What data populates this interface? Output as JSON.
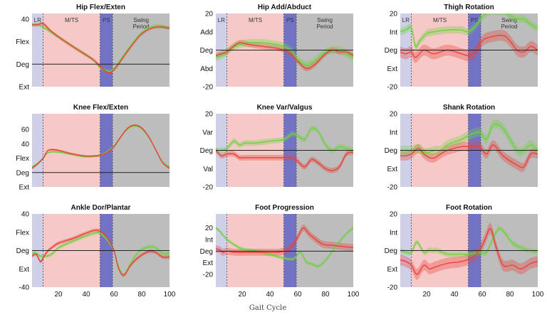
{
  "figure": {
    "xlabel": "Gait Cycle",
    "colors": {
      "lr_phase": "#cfcfe8",
      "mts_phase": "#f6c9c9",
      "ps_phase": "#7373c6",
      "swing_phase": "#bdbdbd",
      "series_red": "#e8423a",
      "series_green": "#6fd13f",
      "zero_line": "#222222"
    },
    "phases": [
      {
        "name": "LR",
        "label": "LR",
        "start": 1,
        "end": 9
      },
      {
        "name": "M/TS",
        "label": "M/TS",
        "start": 9,
        "end": 50
      },
      {
        "name": "PS",
        "label": "PS",
        "start": 50,
        "end": 59
      },
      {
        "name": "Swing Period",
        "label": "Swing\nPeriod",
        "start": 59,
        "end": 100
      }
    ],
    "x_ticks": [
      20,
      40,
      60,
      80,
      100
    ]
  },
  "chart_data": [
    {
      "type": "line",
      "title": "Hip Flex/Exten",
      "ylim": [
        -20,
        45
      ],
      "xlim": [
        1,
        100
      ],
      "y_ticks": [
        {
          "v": 40,
          "label": "40"
        },
        {
          "v": 20,
          "label": "Flex"
        },
        {
          "v": 0,
          "label": "Deg"
        },
        {
          "v": -20,
          "label": "Ext"
        }
      ],
      "show_phase_labels": true,
      "show_x_ticks": false,
      "series": [
        {
          "name": "red",
          "band": 1.5,
          "x": [
            1,
            5,
            9,
            15,
            25,
            35,
            45,
            50,
            55,
            58,
            62,
            70,
            80,
            90,
            100
          ],
          "y": [
            35,
            35,
            36,
            29,
            20,
            12,
            4,
            -2,
            -7,
            -7,
            -2,
            12,
            27,
            33,
            32
          ]
        },
        {
          "name": "green",
          "band": 1.5,
          "x": [
            1,
            5,
            9,
            15,
            25,
            35,
            45,
            50,
            55,
            58,
            62,
            70,
            80,
            90,
            100
          ],
          "y": [
            35,
            35,
            33,
            28,
            20,
            12,
            4,
            -3,
            -6,
            -6,
            -1,
            13,
            28,
            34,
            32
          ]
        }
      ]
    },
    {
      "type": "line",
      "title": "Hip Add/Abduct",
      "ylim": [
        -20,
        20
      ],
      "xlim": [
        1,
        100
      ],
      "y_ticks": [
        {
          "v": 20,
          "label": "20"
        },
        {
          "v": 10,
          "label": "Add"
        },
        {
          "v": 0,
          "label": "Deg"
        },
        {
          "v": -10,
          "label": "Abd"
        },
        {
          "v": -20,
          "label": "-20"
        }
      ],
      "show_phase_labels": true,
      "show_x_ticks": false,
      "series": [
        {
          "name": "red",
          "band": 1.5,
          "x": [
            1,
            5,
            9,
            12,
            18,
            25,
            35,
            45,
            50,
            55,
            60,
            66,
            72,
            80,
            85,
            90,
            95,
            100
          ],
          "y": [
            -3,
            -2,
            -1,
            1,
            4,
            3,
            2,
            1,
            0,
            -2,
            -6,
            -10,
            -8,
            -2,
            0,
            -1,
            -1,
            -3
          ]
        },
        {
          "name": "green",
          "band": 2,
          "x": [
            1,
            5,
            9,
            12,
            18,
            25,
            35,
            45,
            50,
            55,
            60,
            66,
            72,
            80,
            85,
            90,
            95,
            100
          ],
          "y": [
            -4,
            -3,
            -1,
            1,
            3,
            4,
            4,
            3,
            2,
            0,
            -5,
            -8,
            -6,
            -1,
            0,
            0,
            -2,
            -4
          ]
        }
      ]
    },
    {
      "type": "line",
      "title": "Thigh Rotation",
      "ylim": [
        -20,
        20
      ],
      "xlim": [
        1,
        100
      ],
      "y_ticks": [
        {
          "v": 20,
          "label": "20"
        },
        {
          "v": 10,
          "label": "Int"
        },
        {
          "v": 0,
          "label": "Deg"
        },
        {
          "v": -10,
          "label": "Ext"
        },
        {
          "v": -20,
          "label": "-20"
        }
      ],
      "show_phase_labels": true,
      "show_x_ticks": false,
      "series": [
        {
          "name": "red",
          "band": 3,
          "x": [
            1,
            5,
            9,
            12,
            18,
            25,
            35,
            45,
            50,
            55,
            60,
            65,
            75,
            80,
            85,
            90,
            95,
            100
          ],
          "y": [
            -1,
            -2,
            -1,
            -4,
            0,
            -2,
            0,
            -2,
            -3,
            -1,
            5,
            7,
            8,
            5,
            0,
            -1,
            2,
            0
          ]
        },
        {
          "name": "green",
          "band": 2,
          "x": [
            1,
            5,
            9,
            12,
            15,
            20,
            25,
            35,
            45,
            50,
            55,
            60,
            65,
            75,
            80,
            85,
            90,
            95,
            100
          ],
          "y": [
            10,
            11,
            12,
            2,
            5,
            9,
            10,
            11,
            11,
            10,
            13,
            18,
            21,
            21,
            19,
            17,
            17,
            14,
            12
          ]
        }
      ]
    },
    {
      "type": "line",
      "title": "Knee Flex/Exten",
      "ylim": [
        -20,
        82
      ],
      "xlim": [
        1,
        100
      ],
      "y_ticks": [
        {
          "v": 60,
          "label": "60"
        },
        {
          "v": 40,
          "label": "40"
        },
        {
          "v": 20,
          "label": "Flex"
        },
        {
          "v": 0,
          "label": "Deg"
        },
        {
          "v": -20,
          "label": "Ext"
        }
      ],
      "show_phase_labels": false,
      "show_x_ticks": false,
      "series": [
        {
          "name": "red",
          "band": 1.5,
          "x": [
            1,
            5,
            9,
            12,
            16,
            22,
            30,
            40,
            50,
            55,
            60,
            65,
            70,
            75,
            80,
            85,
            90,
            95,
            100
          ],
          "y": [
            6,
            12,
            20,
            30,
            32,
            30,
            26,
            23,
            24,
            28,
            36,
            50,
            62,
            66,
            62,
            50,
            32,
            14,
            6
          ]
        },
        {
          "name": "green",
          "band": 1.5,
          "x": [
            1,
            5,
            9,
            12,
            16,
            22,
            30,
            40,
            50,
            55,
            60,
            65,
            70,
            75,
            80,
            85,
            90,
            95,
            100
          ],
          "y": [
            8,
            13,
            20,
            27,
            29,
            28,
            25,
            22,
            24,
            29,
            37,
            50,
            61,
            65,
            61,
            49,
            32,
            15,
            8
          ]
        }
      ]
    },
    {
      "type": "line",
      "title": "Knee Var/Valgus",
      "ylim": [
        -20,
        20
      ],
      "xlim": [
        1,
        100
      ],
      "y_ticks": [
        {
          "v": 20,
          "label": "20"
        },
        {
          "v": 10,
          "label": "Var"
        },
        {
          "v": 0,
          "label": "Deg"
        },
        {
          "v": -10,
          "label": "Val"
        },
        {
          "v": -20,
          "label": "-20"
        }
      ],
      "show_phase_labels": false,
      "show_x_ticks": false,
      "series": [
        {
          "name": "red",
          "band": 1.5,
          "x": [
            1,
            5,
            9,
            14,
            18,
            22,
            26,
            30,
            40,
            50,
            56,
            60,
            65,
            70,
            75,
            80,
            85,
            90,
            95,
            100
          ],
          "y": [
            0,
            -3,
            -2,
            -2,
            -4,
            -4,
            -4,
            -4,
            -4,
            -4,
            -4,
            -6,
            -9,
            -5,
            -7,
            -10,
            -11,
            -9,
            -2,
            -1
          ]
        },
        {
          "name": "green",
          "band": 1.5,
          "x": [
            1,
            5,
            9,
            14,
            18,
            22,
            26,
            30,
            40,
            50,
            56,
            60,
            65,
            70,
            75,
            80,
            85,
            90,
            95,
            100
          ],
          "y": [
            0,
            0,
            1,
            5,
            3,
            4,
            4,
            4,
            5,
            6,
            9,
            8,
            6,
            12,
            10,
            3,
            0,
            2,
            1,
            0
          ]
        }
      ]
    },
    {
      "type": "line",
      "title": "Shank Rotation",
      "ylim": [
        -20,
        20
      ],
      "xlim": [
        1,
        100
      ],
      "y_ticks": [
        {
          "v": 20,
          "label": "20"
        },
        {
          "v": 10,
          "label": "Int"
        },
        {
          "v": 0,
          "label": "Deg"
        },
        {
          "v": -10,
          "label": "Ext"
        },
        {
          "v": -20,
          "label": "-20"
        }
      ],
      "show_phase_labels": false,
      "show_x_ticks": false,
      "series": [
        {
          "name": "red",
          "band": 2.5,
          "x": [
            1,
            5,
            9,
            14,
            18,
            22,
            26,
            30,
            35,
            45,
            50,
            58,
            63,
            68,
            75,
            85,
            90,
            95,
            100
          ],
          "y": [
            -3,
            -3,
            -2,
            1,
            -2,
            -4,
            -4,
            -2,
            0,
            2,
            2,
            2,
            -2,
            3,
            -3,
            -8,
            -9,
            -2,
            -2
          ]
        },
        {
          "name": "green",
          "band": 2.5,
          "x": [
            1,
            5,
            9,
            14,
            18,
            22,
            26,
            30,
            35,
            45,
            50,
            58,
            63,
            68,
            75,
            85,
            90,
            95,
            100
          ],
          "y": [
            0,
            0,
            0,
            1,
            -1,
            -1,
            0,
            0,
            3,
            6,
            8,
            10,
            6,
            14,
            12,
            0,
            0,
            3,
            0
          ]
        }
      ]
    },
    {
      "type": "line",
      "title": "Ankle Dor/Plantar",
      "ylim": [
        -40,
        40
      ],
      "xlim": [
        1,
        100
      ],
      "y_ticks": [
        {
          "v": 40,
          "label": "40"
        },
        {
          "v": 20,
          "label": "Flex"
        },
        {
          "v": 0,
          "label": "Deg"
        },
        {
          "v": -20,
          "label": "Ext"
        },
        {
          "v": -40,
          "label": "-40"
        }
      ],
      "show_phase_labels": false,
      "show_x_ticks": true,
      "series": [
        {
          "name": "red",
          "band": 2,
          "x": [
            1,
            4,
            7,
            9,
            12,
            16,
            20,
            30,
            40,
            46,
            50,
            55,
            60,
            63,
            67,
            72,
            78,
            85,
            90,
            95,
            100
          ],
          "y": [
            -6,
            -4,
            -12,
            -8,
            -1,
            4,
            8,
            13,
            19,
            22,
            21,
            14,
            0,
            -18,
            -27,
            -16,
            -7,
            -1,
            -2,
            -7,
            -7
          ]
        },
        {
          "name": "green",
          "band": 2,
          "x": [
            1,
            4,
            7,
            9,
            12,
            16,
            20,
            30,
            40,
            46,
            50,
            55,
            60,
            63,
            67,
            72,
            78,
            85,
            90,
            95,
            100
          ],
          "y": [
            -3,
            -3,
            -6,
            -6,
            -6,
            -3,
            3,
            10,
            16,
            19,
            19,
            12,
            0,
            -16,
            -27,
            -14,
            -1,
            4,
            3,
            -3,
            -3
          ]
        }
      ]
    },
    {
      "type": "line",
      "title": "Foot Progression",
      "ylim": [
        -31,
        32
      ],
      "xlim": [
        1,
        100
      ],
      "y_ticks": [
        {
          "v": 20,
          "label": "20"
        },
        {
          "v": 10,
          "label": "Int"
        },
        {
          "v": 0,
          "label": "Deg"
        },
        {
          "v": -10,
          "label": "Ext"
        },
        {
          "v": -20,
          "label": "-20"
        }
      ],
      "show_phase_labels": false,
      "show_x_ticks": true,
      "series": [
        {
          "name": "red",
          "band": 3,
          "x": [
            1,
            4,
            6,
            9,
            15,
            25,
            35,
            45,
            50,
            55,
            60,
            64,
            68,
            72,
            78,
            85,
            92,
            100
          ],
          "y": [
            2,
            1,
            -1,
            0,
            -1,
            -1,
            -1,
            -1,
            0,
            3,
            12,
            20,
            15,
            11,
            6,
            5,
            4,
            3
          ]
        },
        {
          "name": "green",
          "band": 1.5,
          "x": [
            1,
            4,
            9,
            15,
            20,
            30,
            40,
            50,
            55,
            58,
            62,
            66,
            70,
            75,
            80,
            85,
            90,
            95,
            100
          ],
          "y": [
            20,
            17,
            10,
            5,
            2,
            0,
            -3,
            -6,
            -7,
            -6,
            -1,
            -9,
            -11,
            -13,
            -8,
            0,
            8,
            15,
            20
          ]
        }
      ]
    },
    {
      "type": "line",
      "title": "Foot Rotation",
      "ylim": [
        -20,
        20
      ],
      "xlim": [
        1,
        100
      ],
      "y_ticks": [
        {
          "v": 20,
          "label": "20"
        },
        {
          "v": 10,
          "label": "Int"
        },
        {
          "v": 0,
          "label": "Deg"
        },
        {
          "v": -10,
          "label": "Ext"
        },
        {
          "v": -20,
          "label": "-20"
        }
      ],
      "show_phase_labels": false,
      "show_x_ticks": true,
      "series": [
        {
          "name": "red",
          "band": 3,
          "x": [
            1,
            5,
            9,
            13,
            18,
            22,
            26,
            35,
            45,
            52,
            58,
            62,
            66,
            70,
            75,
            82,
            88,
            95,
            100
          ],
          "y": [
            -5,
            -6,
            -8,
            -13,
            -8,
            -10,
            -9,
            -7,
            -6,
            -4,
            0,
            6,
            12,
            2,
            -8,
            -8,
            -10,
            -7,
            -6
          ]
        },
        {
          "name": "green",
          "band": 1.5,
          "x": [
            1,
            5,
            9,
            12,
            14,
            18,
            21,
            25,
            28,
            35,
            45,
            52,
            58,
            63,
            68,
            72,
            76,
            82,
            90,
            100
          ],
          "y": [
            0,
            -1,
            -1,
            4,
            4,
            -1,
            0,
            0,
            0,
            -2,
            -2,
            -2,
            -1,
            -1,
            7,
            12,
            10,
            4,
            1,
            -1
          ]
        }
      ]
    }
  ]
}
